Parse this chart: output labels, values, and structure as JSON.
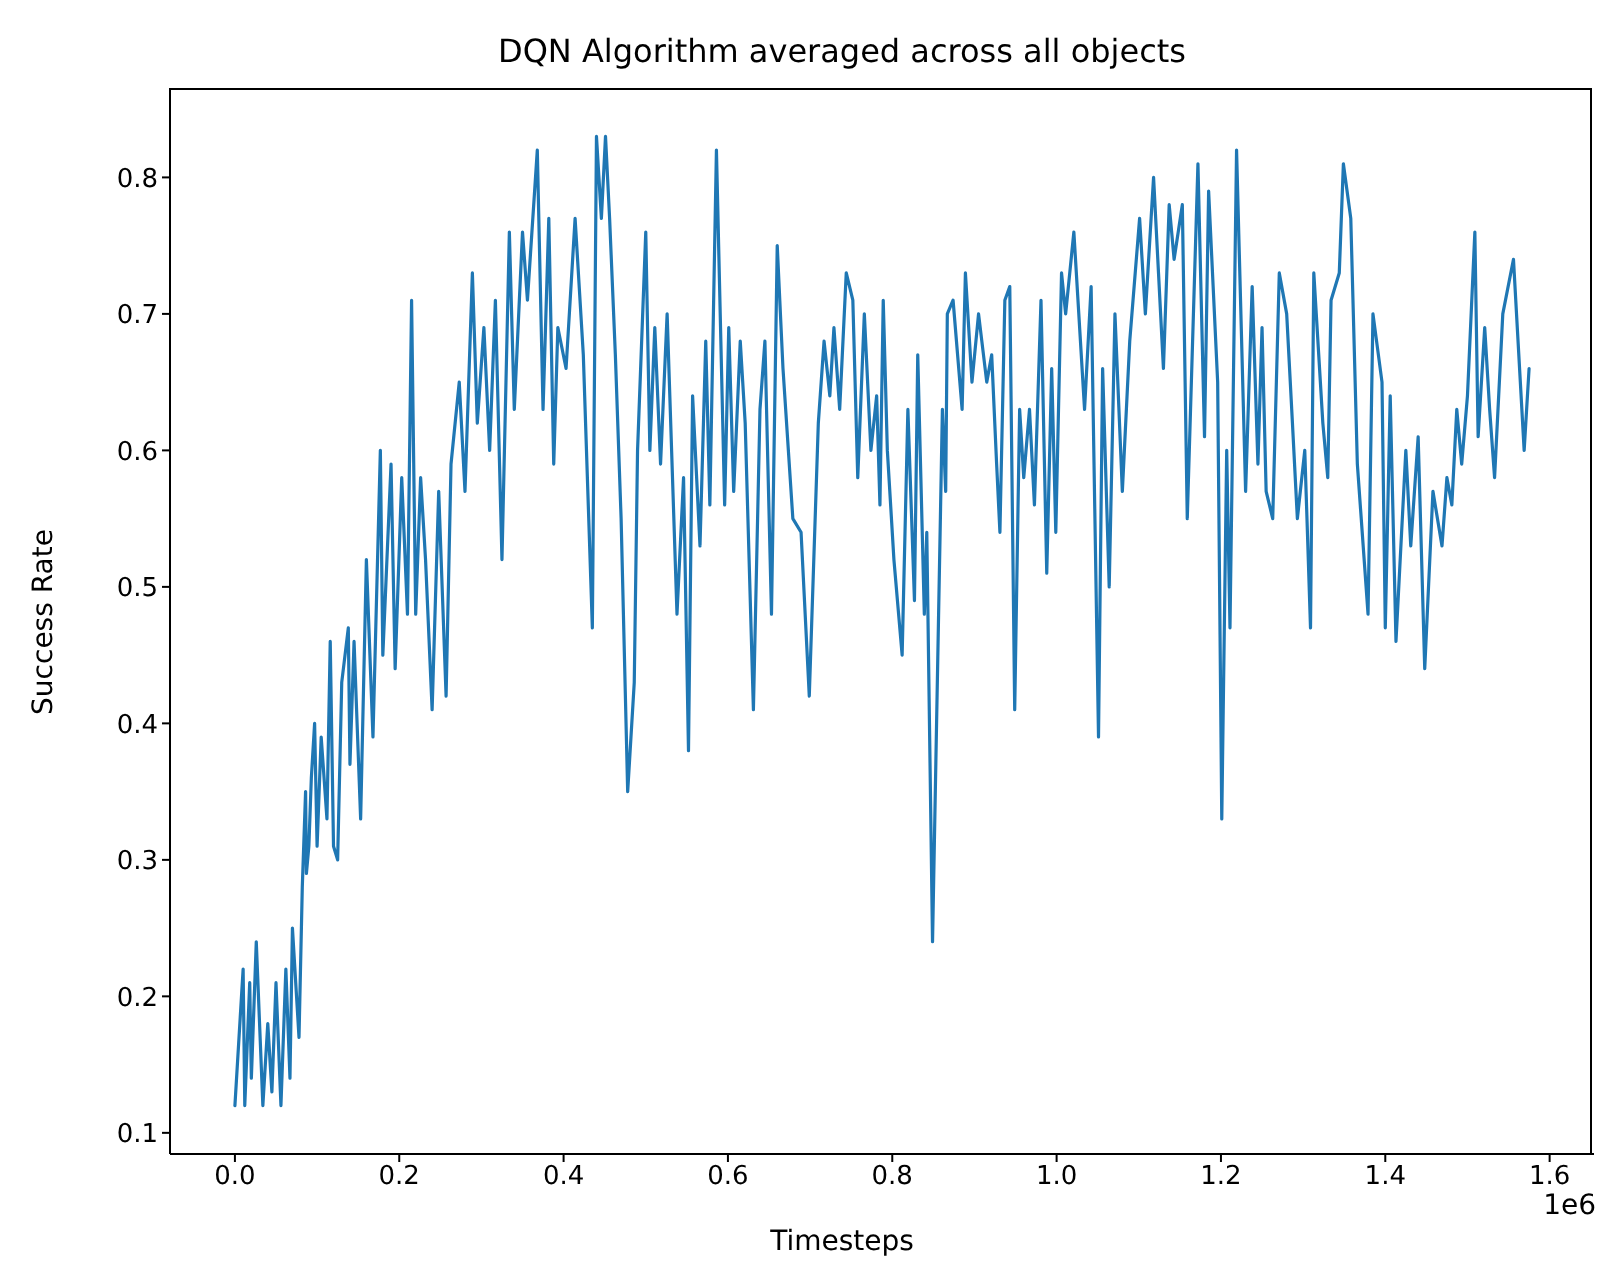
{
  "chart_data": {
    "type": "line",
    "title": "DQN Algorithm averaged across all objects",
    "xlabel": "Timesteps",
    "ylabel": "Success Rate",
    "annotations": [
      "1e6"
    ],
    "xlim": [
      -0.079,
      1.654
    ],
    "ylim": [
      0.0845,
      0.8655
    ],
    "xticks": [
      {
        "value": 0,
        "label": "0.0"
      },
      {
        "value": 0.2,
        "label": "0.2"
      },
      {
        "value": 0.4,
        "label": "0.4"
      },
      {
        "value": 0.6,
        "label": "0.6"
      },
      {
        "value": 0.8,
        "label": "0.8"
      },
      {
        "value": 1.0,
        "label": "1.0"
      },
      {
        "value": 1.2,
        "label": "1.2"
      },
      {
        "value": 1.4,
        "label": "1.4"
      },
      {
        "value": 1.6,
        "label": "1.6"
      }
    ],
    "yticks": [
      0.1,
      0.2,
      0.3,
      0.4,
      0.5,
      0.6,
      0.7,
      0.8
    ],
    "x": [
      0,
      0.007,
      0.01,
      0.012,
      0.018,
      0.02,
      0.026,
      0.034,
      0.04,
      0.045,
      0.05,
      0.056,
      0.062,
      0.067,
      0.07,
      0.078,
      0.082,
      0.086,
      0.087,
      0.09,
      0.093,
      0.097,
      0.1,
      0.105,
      0.112,
      0.116,
      0.12,
      0.125,
      0.13,
      0.138,
      0.14,
      0.145,
      0.153,
      0.16,
      0.168,
      0.177,
      0.18,
      0.19,
      0.195,
      0.203,
      0.21,
      0.215,
      0.22,
      0.226,
      0.232,
      0.24,
      0.248,
      0.257,
      0.263,
      0.273,
      0.28,
      0.289,
      0.295,
      0.303,
      0.31,
      0.317,
      0.325,
      0.334,
      0.34,
      0.35,
      0.356,
      0.368,
      0.375,
      0.382,
      0.388,
      0.393,
      0.403,
      0.414,
      0.424,
      0.435,
      0.44,
      0.446,
      0.451,
      0.456,
      0.463,
      0.47,
      0.478,
      0.486,
      0.49,
      0.5,
      0.505,
      0.511,
      0.518,
      0.526,
      0.538,
      0.546,
      0.552,
      0.557,
      0.566,
      0.573,
      0.578,
      0.586,
      0.596,
      0.601,
      0.607,
      0.615,
      0.621,
      0.631,
      0.639,
      0.645,
      0.653,
      0.66,
      0.667,
      0.679,
      0.689,
      0.699,
      0.71,
      0.717,
      0.724,
      0.729,
      0.736,
      0.744,
      0.752,
      0.758,
      0.766,
      0.774,
      0.781,
      0.785,
      0.789,
      0.794,
      0.802,
      0.812,
      0.819,
      0.827,
      0.831,
      0.839,
      0.842,
      0.849,
      0.861,
      0.865,
      0.867,
      0.874,
      0.885,
      0.889,
      0.897,
      0.905,
      0.915,
      0.921,
      0.927,
      0.931,
      0.937,
      0.943,
      0.949,
      0.955,
      0.96,
      0.967,
      0.973,
      0.981,
      0.988,
      0.994,
      0.999,
      1.006,
      1.011,
      1.021,
      1.034,
      1.042,
      1.051,
      1.056,
      1.064,
      1.071,
      1.08,
      1.089,
      1.101,
      1.108,
      1.118,
      1.124,
      1.13,
      1.137,
      1.143,
      1.153,
      1.159,
      1.172,
      1.18,
      1.185,
      1.196,
      1.201,
      1.207,
      1.211,
      1.219,
      1.23,
      1.238,
      1.245,
      1.25,
      1.255,
      1.263,
      1.271,
      1.28,
      1.287,
      1.293,
      1.302,
      1.309,
      1.313,
      1.324,
      1.33,
      1.334,
      1.344,
      1.349,
      1.358,
      1.366,
      1.379,
      1.385,
      1.396,
      1.4,
      1.406,
      1.413,
      1.425,
      1.431,
      1.44,
      1.448,
      1.458,
      1.469,
      1.475,
      1.481,
      1.487,
      1.493,
      1.5,
      1.509,
      1.513,
      1.521,
      1.527,
      1.533,
      1.543,
      1.556,
      1.569,
      1.575
    ],
    "series": [
      {
        "color": "#1f77b4",
        "values": [
          0.12,
          0.19,
          0.22,
          0.12,
          0.21,
          0.14,
          0.24,
          0.12,
          0.18,
          0.13,
          0.21,
          0.12,
          0.22,
          0.14,
          0.25,
          0.17,
          0.28,
          0.35,
          0.29,
          0.31,
          0.36,
          0.4,
          0.31,
          0.39,
          0.33,
          0.46,
          0.31,
          0.3,
          0.43,
          0.47,
          0.37,
          0.46,
          0.33,
          0.52,
          0.39,
          0.6,
          0.45,
          0.59,
          0.44,
          0.58,
          0.48,
          0.71,
          0.48,
          0.58,
          0.52,
          0.41,
          0.57,
          0.42,
          0.59,
          0.65,
          0.57,
          0.73,
          0.62,
          0.69,
          0.6,
          0.71,
          0.52,
          0.76,
          0.63,
          0.76,
          0.71,
          0.82,
          0.63,
          0.77,
          0.59,
          0.69,
          0.66,
          0.77,
          0.67,
          0.47,
          0.83,
          0.77,
          0.83,
          0.77,
          0.67,
          0.55,
          0.35,
          0.43,
          0.6,
          0.76,
          0.6,
          0.69,
          0.59,
          0.7,
          0.48,
          0.58,
          0.38,
          0.64,
          0.53,
          0.68,
          0.56,
          0.82,
          0.56,
          0.69,
          0.57,
          0.68,
          0.62,
          0.41,
          0.63,
          0.68,
          0.48,
          0.75,
          0.66,
          0.55,
          0.54,
          0.42,
          0.62,
          0.68,
          0.64,
          0.69,
          0.63,
          0.73,
          0.71,
          0.58,
          0.7,
          0.6,
          0.64,
          0.56,
          0.71,
          0.6,
          0.52,
          0.45,
          0.63,
          0.49,
          0.67,
          0.48,
          0.54,
          0.24,
          0.63,
          0.57,
          0.7,
          0.71,
          0.63,
          0.73,
          0.65,
          0.7,
          0.65,
          0.67,
          0.59,
          0.54,
          0.71,
          0.72,
          0.41,
          0.63,
          0.58,
          0.63,
          0.56,
          0.71,
          0.51,
          0.66,
          0.54,
          0.73,
          0.7,
          0.76,
          0.63,
          0.72,
          0.39,
          0.66,
          0.5,
          0.7,
          0.57,
          0.68,
          0.77,
          0.7,
          0.8,
          0.73,
          0.66,
          0.78,
          0.74,
          0.78,
          0.55,
          0.81,
          0.61,
          0.79,
          0.65,
          0.33,
          0.6,
          0.47,
          0.82,
          0.57,
          0.72,
          0.59,
          0.69,
          0.57,
          0.55,
          0.73,
          0.7,
          0.62,
          0.55,
          0.6,
          0.47,
          0.73,
          0.62,
          0.58,
          0.71,
          0.73,
          0.81,
          0.77,
          0.59,
          0.48,
          0.7,
          0.65,
          0.47,
          0.64,
          0.46,
          0.6,
          0.53,
          0.61,
          0.44,
          0.57,
          0.53,
          0.58,
          0.56,
          0.63,
          0.59,
          0.64,
          0.76,
          0.61,
          0.69,
          0.63,
          0.58,
          0.7,
          0.74,
          0.6,
          0.66
        ]
      }
    ]
  }
}
